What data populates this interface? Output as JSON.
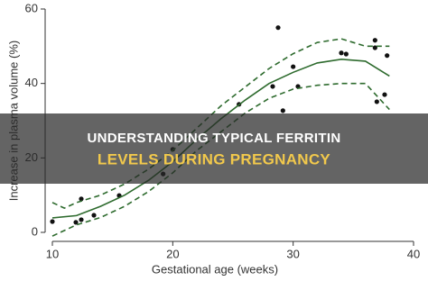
{
  "chart_data": {
    "type": "scatter",
    "x_label": "Gestational age (weeks)",
    "y_label": "Increase in plasma volume (%)",
    "xlim": [
      10,
      40
    ],
    "xticks": [
      10,
      20,
      30,
      40
    ],
    "ylim": [
      0,
      60
    ],
    "yticks": [
      0,
      20,
      40,
      60
    ],
    "series": [
      {
        "style": "points",
        "color": "#111111",
        "x": [
          10,
          11.95,
          12.4,
          12.4,
          13.45,
          15.55,
          19.2,
          20,
          25.5,
          28.3,
          28.75,
          29.15,
          30,
          30.4,
          34,
          34.4,
          36.8,
          36.8,
          36.95,
          37.6,
          37.8
        ],
        "values": [
          2.9,
          2.7,
          9,
          3.4,
          4.6,
          9.9,
          15.7,
          22.3,
          34.4,
          39.2,
          55,
          32.7,
          44.5,
          39.2,
          48.2,
          47.9,
          51.6,
          49.6,
          35.1,
          37,
          47.5
        ]
      },
      {
        "style": "solid",
        "color": "#2e6b2e",
        "x": [
          10,
          12,
          14,
          16,
          18,
          20,
          22,
          24,
          26,
          28,
          30,
          32,
          34,
          36,
          38
        ],
        "values": [
          3.9,
          4.5,
          7,
          10,
          14,
          19,
          25,
          30.5,
          35.5,
          40,
          43,
          45.5,
          46.5,
          46,
          42
        ]
      },
      {
        "style": "dashed",
        "color": "#2e6b2e",
        "x": [
          10,
          11,
          12,
          14,
          16,
          18,
          20,
          22,
          24,
          26,
          28,
          30,
          32,
          34,
          36,
          38
        ],
        "values": [
          8,
          6.5,
          8,
          10,
          13,
          17,
          22,
          28,
          34,
          39,
          44,
          48,
          51,
          52,
          50,
          50
        ]
      },
      {
        "style": "dashed",
        "color": "#2e6b2e",
        "x": [
          10,
          12,
          14,
          16,
          18,
          20,
          22,
          24,
          26,
          28,
          30,
          32,
          34,
          36,
          38
        ],
        "values": [
          -1,
          2,
          4,
          7,
          11,
          16,
          22,
          27,
          32,
          36,
          38.5,
          39.5,
          40,
          40,
          33
        ]
      }
    ]
  },
  "banner": {
    "line1": "UNDERSTANDING TYPICAL FERRITIN",
    "line2": "LEVELS DURING PREGNANCY"
  }
}
